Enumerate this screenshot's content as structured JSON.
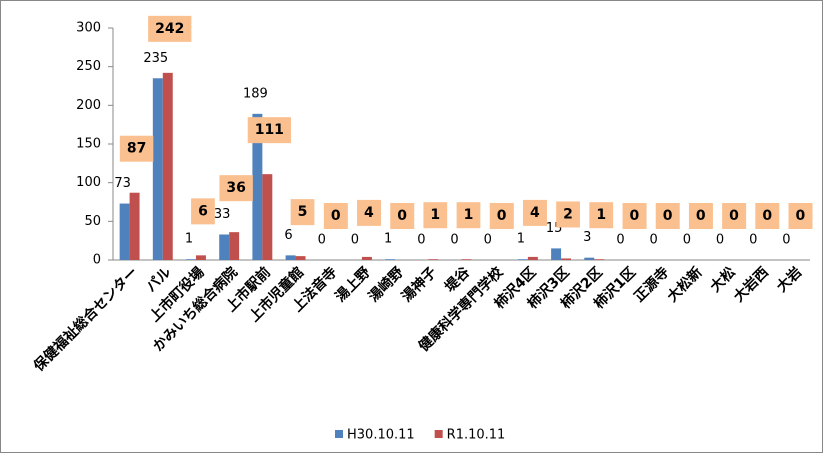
{
  "chart_data": {
    "type": "bar",
    "categories": [
      "保健福祉総合センター",
      "パル",
      "上市町役場",
      "かみいち総合病院",
      "上市駅前",
      "上市児童館",
      "上法音寺",
      "湯上野",
      "湯崎野",
      "湯神子",
      "堤谷",
      "健康科学専門学校",
      "柿沢4区",
      "柿沢3区",
      "柿沢2区",
      "柿沢1区",
      "正源寺",
      "大松新",
      "大松",
      "大岩西",
      "大岩"
    ],
    "series": [
      {
        "name": "H30.10.11",
        "color": "#4f81bd",
        "values": [
          73,
          235,
          1,
          33,
          189,
          6,
          0,
          0,
          1,
          0,
          0,
          0,
          1,
          15,
          3,
          0,
          0,
          0,
          0,
          0,
          0
        ]
      },
      {
        "name": "R1.10.11",
        "color": "#c0504d",
        "values": [
          87,
          242,
          6,
          36,
          111,
          5,
          0,
          4,
          0,
          1,
          1,
          0,
          4,
          2,
          1,
          0,
          0,
          0,
          0,
          0,
          0
        ]
      }
    ],
    "ylim": [
      0,
      300
    ],
    "yticks": [
      0,
      50,
      100,
      150,
      200,
      250,
      300
    ],
    "grid": false,
    "legend": "bottom"
  }
}
